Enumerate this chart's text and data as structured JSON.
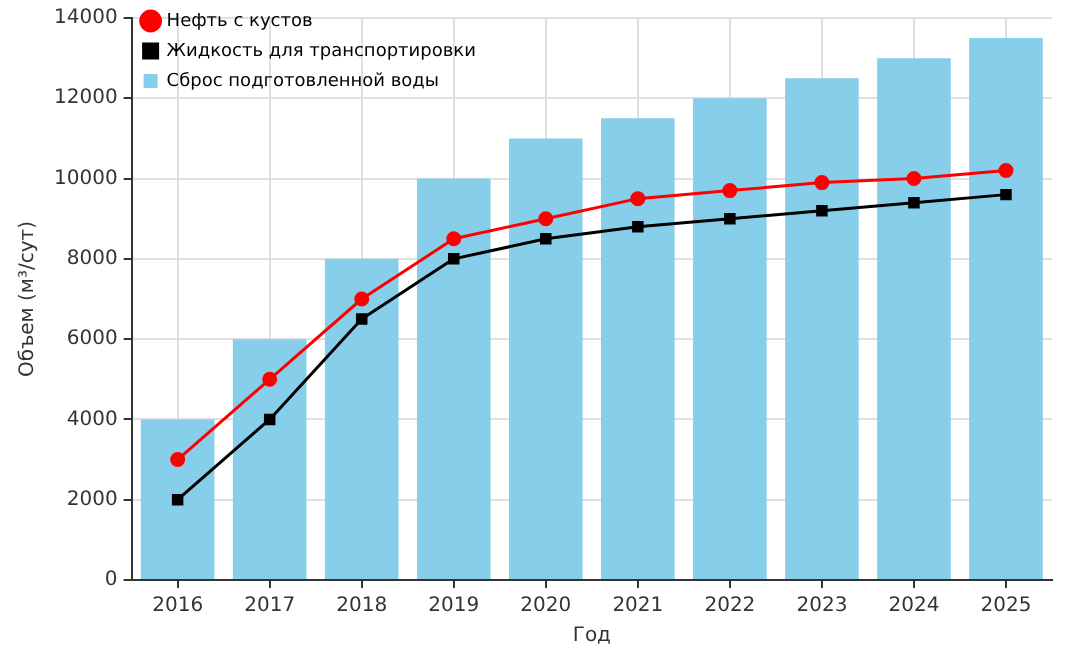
{
  "chart_data": {
    "type": "bar",
    "xlabel": "Год",
    "ylabel": "Объем (м³/сут)",
    "categories": [
      "2016",
      "2017",
      "2018",
      "2019",
      "2020",
      "2021",
      "2022",
      "2023",
      "2024",
      "2025"
    ],
    "series": [
      {
        "name": "Нефть с кустов",
        "type": "line",
        "color": "#ff0000",
        "marker": "circle",
        "values": [
          3000,
          5000,
          7000,
          8500,
          9000,
          9500,
          9700,
          9900,
          10000,
          10200
        ]
      },
      {
        "name": "Жидкость для транспортировки",
        "type": "line",
        "color": "#000000",
        "marker": "square",
        "values": [
          2000,
          4000,
          6500,
          8000,
          8500,
          8800,
          9000,
          9200,
          9400,
          9600
        ]
      },
      {
        "name": "Сброс подготовленной воды",
        "color": "#87ceeb",
        "values": [
          4000,
          6000,
          8000,
          10000,
          11000,
          11500,
          12000,
          12500,
          13000,
          13500
        ]
      }
    ],
    "ylim": [
      0,
      14000
    ],
    "yticks": [
      0,
      2000,
      4000,
      6000,
      8000,
      10000,
      12000,
      14000
    ],
    "grid": true,
    "legend": "top left"
  }
}
